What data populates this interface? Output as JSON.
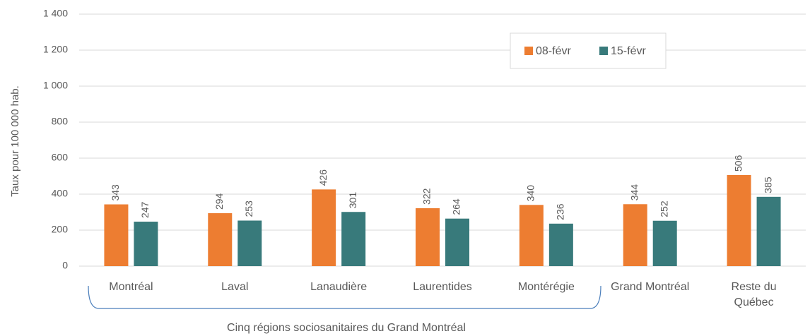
{
  "chart_data": {
    "type": "bar",
    "y_axis_label": "Taux pour 100 000 hab.",
    "categories": [
      "Montréal",
      "Laval",
      "Lanaudière",
      "Laurentides",
      "Montérégie",
      "Grand Montréal",
      "Reste du Québec"
    ],
    "series": [
      {
        "name": "08-févr",
        "color": "#ed7d31",
        "values": [
          343,
          294,
          426,
          322,
          340,
          344,
          506
        ]
      },
      {
        "name": "15-févr",
        "color": "#387a7b",
        "values": [
          247,
          253,
          301,
          264,
          236,
          252,
          385
        ]
      }
    ],
    "ylim": [
      0,
      1400
    ],
    "yticks": [
      0,
      200,
      400,
      600,
      800,
      {
        "value": 1000,
        "label": "1 000"
      },
      {
        "value": 1200,
        "label": "1 200"
      },
      {
        "value": 1400,
        "label": "1 400"
      }
    ],
    "grid": true,
    "legend_position": "top-right",
    "annotation": "Cinq régions sociosanitaires du Grand Montréal"
  }
}
